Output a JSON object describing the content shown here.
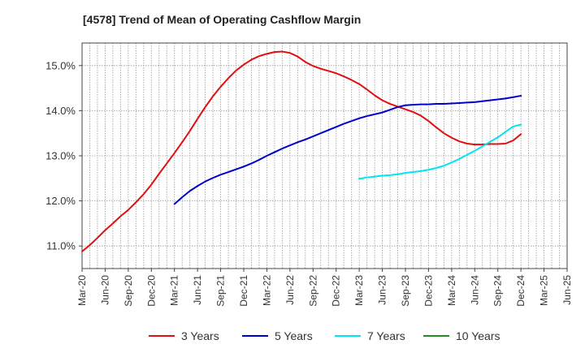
{
  "chart_data": {
    "type": "line",
    "title": "[4578]  Trend of Mean of Operating Cashflow Margin",
    "xlabel": "",
    "ylabel": "",
    "ylim": [
      10.5,
      15.5
    ],
    "grid": true,
    "legend_position": "bottom",
    "x_ticks": [
      "Mar-20",
      "Jun-20",
      "Sep-20",
      "Dec-20",
      "Mar-21",
      "Jun-21",
      "Sep-21",
      "Dec-21",
      "Mar-22",
      "Jun-22",
      "Sep-22",
      "Dec-22",
      "Mar-23",
      "Jun-23",
      "Sep-23",
      "Dec-23",
      "Mar-24",
      "Jun-24",
      "Sep-24",
      "Dec-24",
      "Mar-25",
      "Jun-25"
    ],
    "y_ticks": [
      11.0,
      12.0,
      13.0,
      14.0,
      15.0
    ],
    "y_tick_labels": [
      "11.0%",
      "12.0%",
      "13.0%",
      "14.0%",
      "15.0%"
    ],
    "series": [
      {
        "name": "3 Years",
        "color": "#dd1111",
        "points": [
          [
            "Mar-20",
            10.88
          ],
          [
            "Apr-20",
            11.02
          ],
          [
            "May-20",
            11.18
          ],
          [
            "Jun-20",
            11.35
          ],
          [
            "Jul-20",
            11.5
          ],
          [
            "Aug-20",
            11.66
          ],
          [
            "Sep-20",
            11.8
          ],
          [
            "Oct-20",
            11.97
          ],
          [
            "Nov-20",
            12.15
          ],
          [
            "Dec-20",
            12.36
          ],
          [
            "Jan-21",
            12.6
          ],
          [
            "Feb-21",
            12.83
          ],
          [
            "Mar-21",
            13.06
          ],
          [
            "Apr-21",
            13.3
          ],
          [
            "May-21",
            13.55
          ],
          [
            "Jun-21",
            13.82
          ],
          [
            "Jul-21",
            14.08
          ],
          [
            "Aug-21",
            14.32
          ],
          [
            "Sep-21",
            14.53
          ],
          [
            "Oct-21",
            14.72
          ],
          [
            "Nov-21",
            14.89
          ],
          [
            "Dec-21",
            15.02
          ],
          [
            "Jan-22",
            15.13
          ],
          [
            "Feb-22",
            15.21
          ],
          [
            "Mar-22",
            15.26
          ],
          [
            "Apr-22",
            15.3
          ],
          [
            "May-22",
            15.31
          ],
          [
            "Jun-22",
            15.28
          ],
          [
            "Jul-22",
            15.2
          ],
          [
            "Aug-22",
            15.08
          ],
          [
            "Sep-22",
            14.99
          ],
          [
            "Oct-22",
            14.93
          ],
          [
            "Nov-22",
            14.88
          ],
          [
            "Dec-22",
            14.83
          ],
          [
            "Jan-23",
            14.76
          ],
          [
            "Feb-23",
            14.68
          ],
          [
            "Mar-23",
            14.59
          ],
          [
            "Apr-23",
            14.47
          ],
          [
            "May-23",
            14.34
          ],
          [
            "Jun-23",
            14.23
          ],
          [
            "Jul-23",
            14.15
          ],
          [
            "Aug-23",
            14.09
          ],
          [
            "Sep-23",
            14.03
          ],
          [
            "Oct-23",
            13.97
          ],
          [
            "Nov-23",
            13.89
          ],
          [
            "Dec-23",
            13.77
          ],
          [
            "Jan-24",
            13.63
          ],
          [
            "Feb-24",
            13.5
          ],
          [
            "Mar-24",
            13.4
          ],
          [
            "Apr-24",
            13.32
          ],
          [
            "May-24",
            13.27
          ],
          [
            "Jun-24",
            13.25
          ],
          [
            "Jul-24",
            13.25
          ],
          [
            "Aug-24",
            13.26
          ],
          [
            "Sep-24",
            13.26
          ],
          [
            "Oct-24",
            13.27
          ],
          [
            "Nov-24",
            13.34
          ],
          [
            "Dec-24",
            13.48
          ]
        ]
      },
      {
        "name": "5 Years",
        "color": "#0000cc",
        "points": [
          [
            "Mar-21",
            11.93
          ],
          [
            "Apr-21",
            12.08
          ],
          [
            "May-21",
            12.22
          ],
          [
            "Jun-21",
            12.33
          ],
          [
            "Jul-21",
            12.43
          ],
          [
            "Aug-21",
            12.51
          ],
          [
            "Sep-21",
            12.58
          ],
          [
            "Oct-21",
            12.64
          ],
          [
            "Nov-21",
            12.7
          ],
          [
            "Dec-21",
            12.76
          ],
          [
            "Jan-22",
            12.83
          ],
          [
            "Feb-22",
            12.91
          ],
          [
            "Mar-22",
            13.0
          ],
          [
            "Apr-22",
            13.08
          ],
          [
            "May-22",
            13.16
          ],
          [
            "Jun-22",
            13.23
          ],
          [
            "Jul-22",
            13.3
          ],
          [
            "Aug-22",
            13.36
          ],
          [
            "Sep-22",
            13.43
          ],
          [
            "Oct-22",
            13.5
          ],
          [
            "Nov-22",
            13.57
          ],
          [
            "Dec-22",
            13.64
          ],
          [
            "Jan-23",
            13.71
          ],
          [
            "Feb-23",
            13.77
          ],
          [
            "Mar-23",
            13.83
          ],
          [
            "Apr-23",
            13.88
          ],
          [
            "May-23",
            13.92
          ],
          [
            "Jun-23",
            13.96
          ],
          [
            "Jul-23",
            14.02
          ],
          [
            "Aug-23",
            14.08
          ],
          [
            "Sep-23",
            14.12
          ],
          [
            "Oct-23",
            14.13
          ],
          [
            "Nov-23",
            14.14
          ],
          [
            "Dec-23",
            14.14
          ],
          [
            "Jan-24",
            14.15
          ],
          [
            "Feb-24",
            14.15
          ],
          [
            "Mar-24",
            14.16
          ],
          [
            "Apr-24",
            14.17
          ],
          [
            "May-24",
            14.18
          ],
          [
            "Jun-24",
            14.19
          ],
          [
            "Jul-24",
            14.21
          ],
          [
            "Aug-24",
            14.23
          ],
          [
            "Sep-24",
            14.25
          ],
          [
            "Oct-24",
            14.27
          ],
          [
            "Nov-24",
            14.3
          ],
          [
            "Dec-24",
            14.33
          ]
        ]
      },
      {
        "name": "7 Years",
        "color": "#00e5ee",
        "points": [
          [
            "Mar-23",
            12.49
          ],
          [
            "Apr-23",
            12.52
          ],
          [
            "May-23",
            12.54
          ],
          [
            "Jun-23",
            12.56
          ],
          [
            "Jul-23",
            12.57
          ],
          [
            "Aug-23",
            12.59
          ],
          [
            "Sep-23",
            12.62
          ],
          [
            "Oct-23",
            12.64
          ],
          [
            "Nov-23",
            12.66
          ],
          [
            "Dec-23",
            12.69
          ],
          [
            "Jan-24",
            12.73
          ],
          [
            "Feb-24",
            12.78
          ],
          [
            "Mar-24",
            12.85
          ],
          [
            "Apr-24",
            12.93
          ],
          [
            "May-24",
            13.02
          ],
          [
            "Jun-24",
            13.11
          ],
          [
            "Jul-24",
            13.21
          ],
          [
            "Aug-24",
            13.31
          ],
          [
            "Sep-24",
            13.41
          ],
          [
            "Oct-24",
            13.53
          ],
          [
            "Nov-24",
            13.65
          ],
          [
            "Dec-24",
            13.69
          ]
        ]
      },
      {
        "name": "10 Years",
        "color": "#228b22",
        "points": []
      }
    ]
  }
}
